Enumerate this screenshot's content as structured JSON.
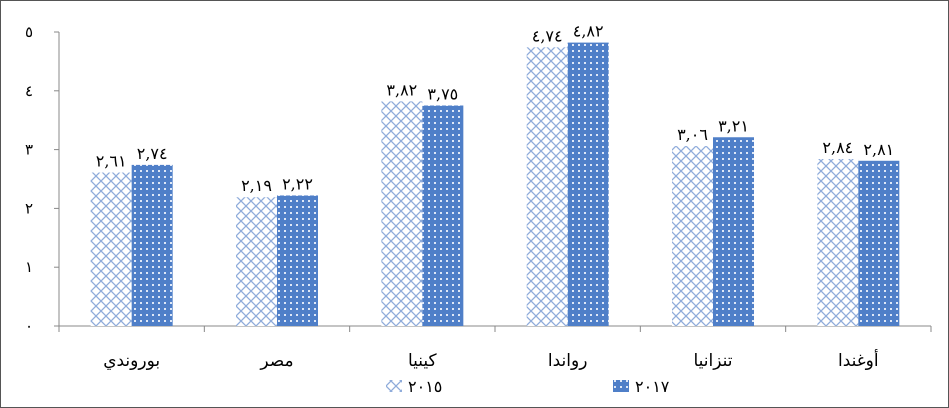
{
  "chart_data": {
    "type": "bar",
    "categories": [
      "بوروندي",
      "مصر",
      "كينيا",
      "رواندا",
      "تنزانيا",
      "أوغندا"
    ],
    "series": [
      {
        "name": "٢٠١٥",
        "values": [
          2.61,
          2.19,
          3.82,
          4.74,
          3.06,
          2.84
        ],
        "labels": [
          "٢,٦١",
          "٢,١٩",
          "٣,٨٢",
          "٤,٧٤",
          "٣,٠٦",
          "٢,٨٤"
        ],
        "color": "#9db7e0",
        "pattern": "crosshatch"
      },
      {
        "name": "٢٠١٧",
        "values": [
          2.74,
          2.22,
          3.75,
          4.82,
          3.21,
          2.81
        ],
        "labels": [
          "٢,٧٤",
          "٢,٢٢",
          "٣,٧٥",
          "٤,٨٢",
          "٣,٢١",
          "٢,٨١"
        ],
        "color": "#4f7fc8",
        "pattern": "dotted-grid"
      }
    ],
    "ylim": [
      0,
      5
    ],
    "yticks": [
      0,
      1,
      2,
      3,
      4,
      5
    ],
    "ytick_labels": [
      "٠",
      "١",
      "٢",
      "٣",
      "٤",
      "٥"
    ],
    "grid": false,
    "legend_position": "bottom"
  }
}
